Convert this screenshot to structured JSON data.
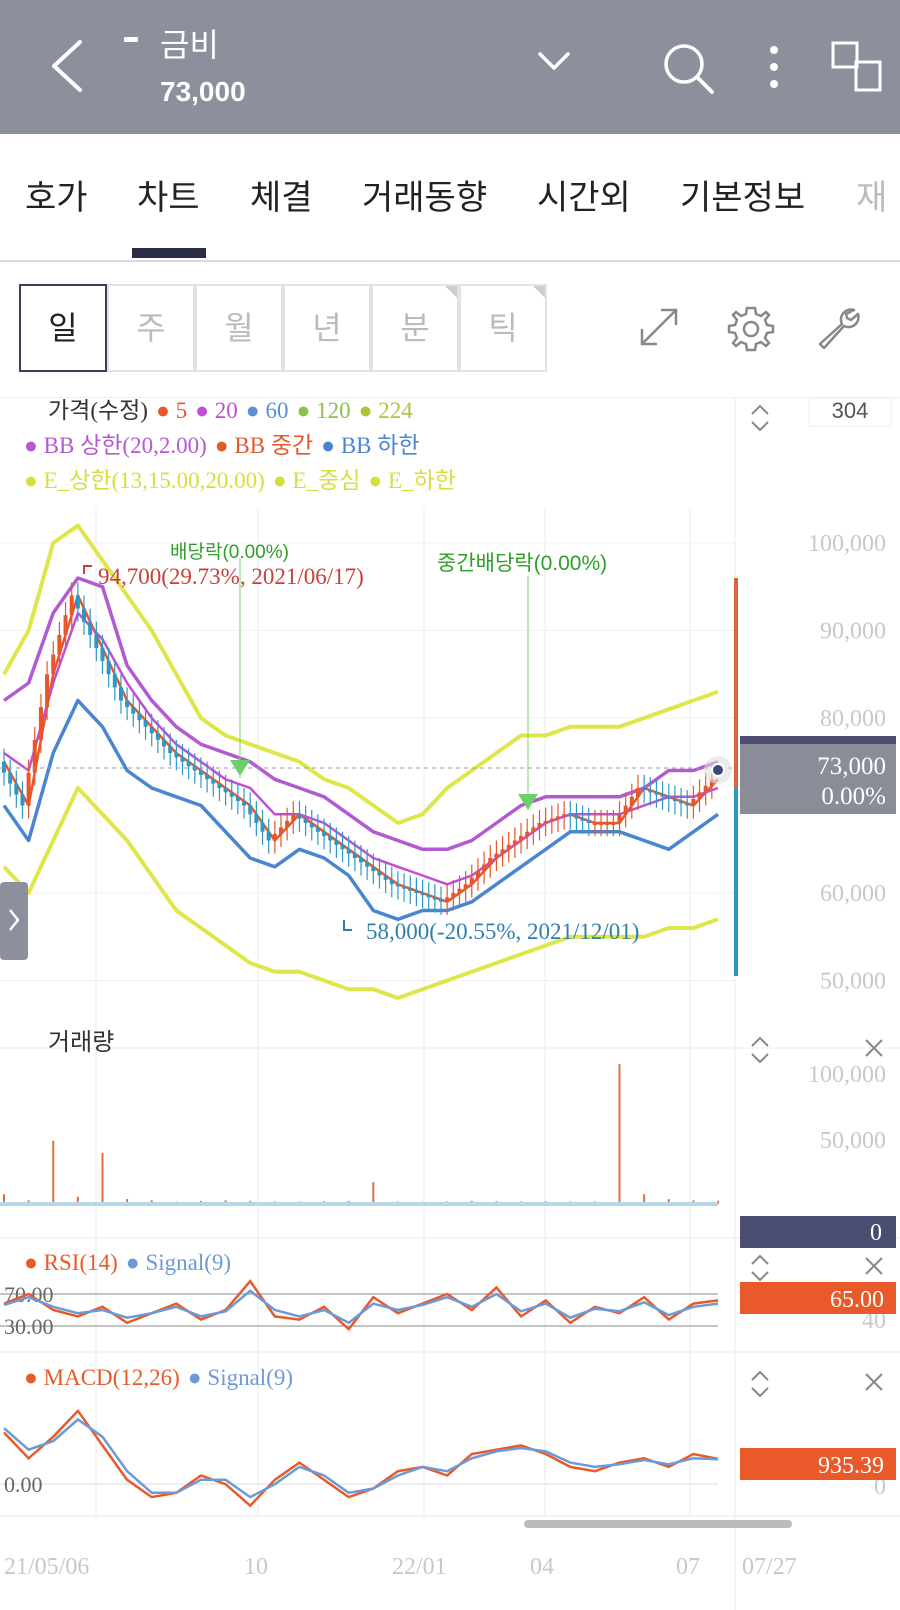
{
  "header": {
    "stock_name": "금비",
    "price": "73,000"
  },
  "tabs": [
    "호가",
    "차트",
    "체결",
    "거래동향",
    "시간외",
    "기본정보",
    "재"
  ],
  "periods": [
    "일",
    "주",
    "월",
    "년",
    "분",
    "틱"
  ],
  "chart_data": [
    {
      "type": "line",
      "panel": "price",
      "y_axis_ticks": [
        "100,000",
        "90,000",
        "80,000",
        "60,000",
        "50,000"
      ],
      "ylim": [
        48000,
        104000
      ],
      "x_axis_ticks": [
        "21/05/06",
        "10",
        "22/01",
        "04",
        "07",
        "07/27"
      ],
      "candle_count": "304",
      "current_price_label": "73,000",
      "current_change_label": "0.00%",
      "legend_line1": [
        {
          "name": "가격(수정)",
          "color": "#333333"
        },
        {
          "name": "5",
          "color": "#e8562a"
        },
        {
          "name": "20",
          "color": "#c04fd6"
        },
        {
          "name": "60",
          "color": "#5b8fd6"
        },
        {
          "name": "120",
          "color": "#8cc04a"
        },
        {
          "name": "224",
          "color": "#a8c83c"
        }
      ],
      "legend_line2": [
        {
          "name": "BB 상한(20,2.00)",
          "color": "#b45ad0"
        },
        {
          "name": "BB 중간",
          "color": "#e05a2a"
        },
        {
          "name": "BB 하한",
          "color": "#4a86cf"
        }
      ],
      "legend_line3": [
        {
          "name": "E_상한(13,15.00,20.00)",
          "color": "#d6df3c"
        },
        {
          "name": "E_중심",
          "color": "#d6df3c"
        },
        {
          "name": "E_하한",
          "color": "#d6df3c"
        }
      ],
      "annotations": {
        "dividend1": "배당락(0.00%)",
        "dividend2": "중간배당락(0.00%)",
        "high": "94,700(29.73%, 2021/06/17)",
        "low": "58,000(-20.55%, 2021/12/01)"
      },
      "series": [
        {
          "name": "5",
          "values": [
            75000,
            70000,
            85000,
            94000,
            88000,
            82000,
            79000,
            76000,
            74000,
            72000,
            70000,
            66000,
            69000,
            67000,
            65000,
            63000,
            61000,
            60000,
            59000,
            61000,
            64000,
            66000,
            68000,
            69000,
            68000,
            68000,
            72000,
            71000,
            70000,
            73000
          ]
        },
        {
          "name": "20",
          "values": [
            76000,
            74000,
            84000,
            92000,
            89000,
            84000,
            80000,
            77000,
            75000,
            73000,
            72000,
            69000,
            69000,
            68000,
            66000,
            64000,
            63000,
            62000,
            61000,
            62000,
            64000,
            66000,
            68000,
            69000,
            69000,
            69000,
            70000,
            71000,
            71000,
            72000
          ]
        },
        {
          "name": "BB 상한",
          "values": [
            82000,
            84000,
            92000,
            96000,
            95000,
            86000,
            82000,
            79000,
            77000,
            76000,
            75000,
            73000,
            72000,
            71000,
            69000,
            67000,
            66000,
            65000,
            65000,
            66000,
            68000,
            70000,
            71000,
            71000,
            71000,
            71000,
            72000,
            74000,
            74000,
            75000
          ]
        },
        {
          "name": "BB 하한",
          "values": [
            70000,
            66000,
            76000,
            82000,
            79000,
            74000,
            72000,
            71000,
            70000,
            67000,
            64000,
            63000,
            65000,
            64000,
            62000,
            58000,
            57000,
            58000,
            58000,
            59000,
            61000,
            63000,
            65000,
            67000,
            67000,
            67000,
            66000,
            65000,
            67000,
            69000
          ]
        },
        {
          "name": "E_상한",
          "values": [
            85000,
            90000,
            100000,
            102000,
            98000,
            94000,
            90000,
            85000,
            80000,
            78000,
            77000,
            76000,
            75000,
            73000,
            72000,
            70000,
            68000,
            69000,
            72000,
            74000,
            76000,
            78000,
            78000,
            79000,
            79000,
            79000,
            80000,
            81000,
            82000,
            83000
          ]
        },
        {
          "name": "E_하한",
          "values": [
            63000,
            60000,
            66000,
            72000,
            69000,
            66000,
            62000,
            58000,
            56000,
            54000,
            52000,
            51000,
            51000,
            50000,
            49000,
            49000,
            48000,
            49000,
            50000,
            51000,
            52000,
            53000,
            54000,
            55000,
            55000,
            55000,
            55000,
            56000,
            56000,
            57000
          ]
        }
      ]
    },
    {
      "type": "bar",
      "panel": "volume",
      "title": "거래량",
      "y_axis_ticks": [
        "100,000",
        "50,000"
      ],
      "ylim": [
        0,
        120000
      ],
      "current_value_label": "0",
      "values": [
        8000,
        3000,
        52000,
        6000,
        42000,
        4000,
        3000,
        2000,
        2500,
        3000,
        2500,
        2000,
        2000,
        2200,
        2500,
        18000,
        2000,
        1800,
        2000,
        2500,
        2200,
        2000,
        2200,
        2000,
        2000,
        115000,
        8000,
        4000,
        3000,
        2500
      ]
    },
    {
      "type": "line",
      "panel": "rsi",
      "legend": [
        {
          "name": "RSI(14)",
          "color": "#e85a2a"
        },
        {
          "name": "Signal(9)",
          "color": "#6c9ad8"
        }
      ],
      "level_labels": [
        "70.00",
        "30.00"
      ],
      "right_axis_label": "40",
      "current_value_label": "65.00",
      "ylim": [
        0,
        100
      ],
      "series": [
        {
          "name": "RSI(14)",
          "values": [
            60,
            75,
            50,
            40,
            55,
            30,
            45,
            60,
            35,
            50,
            95,
            40,
            35,
            55,
            20,
            70,
            45,
            60,
            75,
            50,
            85,
            40,
            65,
            30,
            55,
            45,
            70,
            35,
            60,
            65
          ]
        },
        {
          "name": "Signal(9)",
          "values": [
            58,
            70,
            55,
            45,
            50,
            38,
            45,
            55,
            40,
            48,
            80,
            50,
            40,
            50,
            30,
            60,
            50,
            58,
            70,
            55,
            75,
            48,
            60,
            38,
            52,
            48,
            62,
            42,
            55,
            60
          ]
        }
      ]
    },
    {
      "type": "line",
      "panel": "macd",
      "legend": [
        {
          "name": "MACD(12,26)",
          "color": "#e85a2a"
        },
        {
          "name": "Signal(9)",
          "color": "#6c9ad8"
        }
      ],
      "zero_label": "0.00",
      "right_axis_label": "0",
      "current_value_label": "935.39",
      "ylim": [
        -5000,
        8000
      ],
      "series": [
        {
          "name": "MACD(12,26)",
          "values": [
            4000,
            1000,
            3500,
            6500,
            2500,
            -1500,
            -3500,
            -3000,
            -1000,
            -2000,
            -4500,
            -1500,
            500,
            -1500,
            -3500,
            -2500,
            -500,
            0,
            -1000,
            1500,
            2000,
            2500,
            1500,
            0,
            -500,
            500,
            1000,
            0,
            1500,
            935
          ]
        },
        {
          "name": "Signal(9)",
          "values": [
            4500,
            2000,
            3000,
            5500,
            3500,
            -500,
            -3000,
            -3000,
            -1500,
            -1500,
            -3500,
            -2000,
            0,
            -1000,
            -3000,
            -2500,
            -1000,
            0,
            -500,
            1000,
            1800,
            2200,
            1800,
            500,
            0,
            300,
            800,
            300,
            1000,
            900
          ]
        }
      ]
    }
  ],
  "colors": {
    "header_bg": "#8c8f9c",
    "ma5": "#e8562a",
    "bb_upper": "#b45ad0",
    "bb_lower": "#4a86cf",
    "envelope": "#dfe64a",
    "rise": "#e8562a",
    "fall": "#2f97c6",
    "badge_price": "#8a8c98",
    "badge_volume": "#4a4d70",
    "badge_indicator": "#e85a2a"
  }
}
